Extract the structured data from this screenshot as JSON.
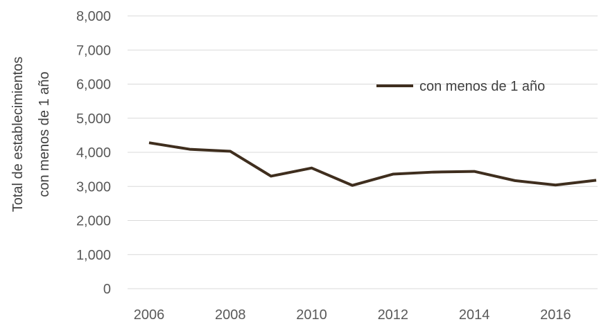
{
  "chart_data": {
    "type": "line",
    "x": [
      2006,
      2007,
      2008,
      2009,
      2010,
      2011,
      2012,
      2013,
      2014,
      2015,
      2016,
      2017
    ],
    "series": [
      {
        "name": "con menos de 1 año",
        "values": [
          4280,
          4090,
          4030,
          3300,
          3540,
          3030,
          3360,
          3420,
          3440,
          3170,
          3040,
          3180
        ],
        "color": "#3f2e1e"
      }
    ],
    "xticks": [
      "2006",
      "2008",
      "2010",
      "2012",
      "2014",
      "2016"
    ],
    "yticks": [
      "0",
      "1,000",
      "2,000",
      "3,000",
      "4,000",
      "5,000",
      "6,000",
      "7,000",
      "8,000"
    ],
    "ylabel_line1": "Total de establecimientos",
    "ylabel_line2": "con menos de 1 año",
    "xlim": [
      2006,
      2017
    ],
    "ylim": [
      0,
      8000
    ],
    "grid": "horizontal",
    "legend_position": "upper-right"
  }
}
